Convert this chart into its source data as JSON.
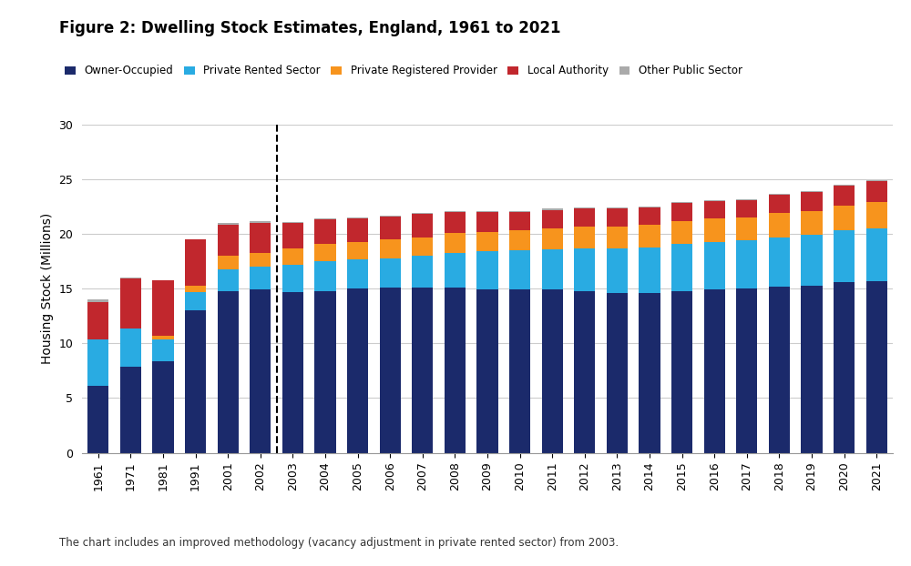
{
  "title": "Figure 2: Dwelling Stock Estimates, England, 1961 to 2021",
  "ylabel": "Housing Stock (Millions)",
  "footnote": "The chart includes an improved methodology (vacancy adjustment in private rented sector) from 2003.",
  "years": [
    "1961",
    "1971",
    "1981",
    "1991",
    "2001",
    "2002",
    "2003",
    "2004",
    "2005",
    "2006",
    "2007",
    "2008",
    "2009",
    "2010",
    "2011",
    "2012",
    "2013",
    "2014",
    "2015",
    "2016",
    "2017",
    "2018",
    "2019",
    "2020",
    "2021"
  ],
  "owner_occupied": [
    6.1,
    7.9,
    8.4,
    13.0,
    14.8,
    14.9,
    14.7,
    14.8,
    15.0,
    15.1,
    15.1,
    15.1,
    14.9,
    14.9,
    14.9,
    14.8,
    14.6,
    14.6,
    14.8,
    14.9,
    15.0,
    15.2,
    15.3,
    15.6,
    15.7
  ],
  "private_rented": [
    4.3,
    3.5,
    2.0,
    1.7,
    2.0,
    2.1,
    2.5,
    2.7,
    2.7,
    2.7,
    2.9,
    3.2,
    3.5,
    3.6,
    3.7,
    3.9,
    4.1,
    4.2,
    4.3,
    4.4,
    4.4,
    4.5,
    4.6,
    4.7,
    4.8
  ],
  "private_registered": [
    0.0,
    0.0,
    0.3,
    0.6,
    1.2,
    1.3,
    1.5,
    1.6,
    1.6,
    1.7,
    1.7,
    1.8,
    1.8,
    1.8,
    1.9,
    2.0,
    2.0,
    2.0,
    2.1,
    2.1,
    2.1,
    2.2,
    2.2,
    2.3,
    2.4
  ],
  "local_authority": [
    3.4,
    4.5,
    5.1,
    4.2,
    2.8,
    2.7,
    2.3,
    2.2,
    2.1,
    2.1,
    2.1,
    1.9,
    1.8,
    1.7,
    1.7,
    1.6,
    1.6,
    1.6,
    1.6,
    1.6,
    1.6,
    1.7,
    1.7,
    1.8,
    1.9
  ],
  "other_public": [
    0.2,
    0.1,
    0.0,
    0.0,
    0.2,
    0.2,
    0.1,
    0.1,
    0.1,
    0.1,
    0.1,
    0.1,
    0.1,
    0.1,
    0.1,
    0.1,
    0.1,
    0.1,
    0.1,
    0.1,
    0.1,
    0.1,
    0.1,
    0.1,
    0.1
  ],
  "colors": {
    "owner_occupied": "#1B2A6B",
    "private_rented": "#29ABE2",
    "private_registered": "#F7941D",
    "local_authority": "#C1272D",
    "other_public": "#AAAAAA"
  },
  "legend_labels": [
    "Owner-Occupied",
    "Private Rented Sector",
    "Private Registered Provider",
    "Local Authority",
    "Other Public Sector"
  ],
  "ylim": [
    0,
    30
  ],
  "yticks": [
    0,
    5,
    10,
    15,
    20,
    25,
    30
  ],
  "background_color": "#FFFFFF"
}
